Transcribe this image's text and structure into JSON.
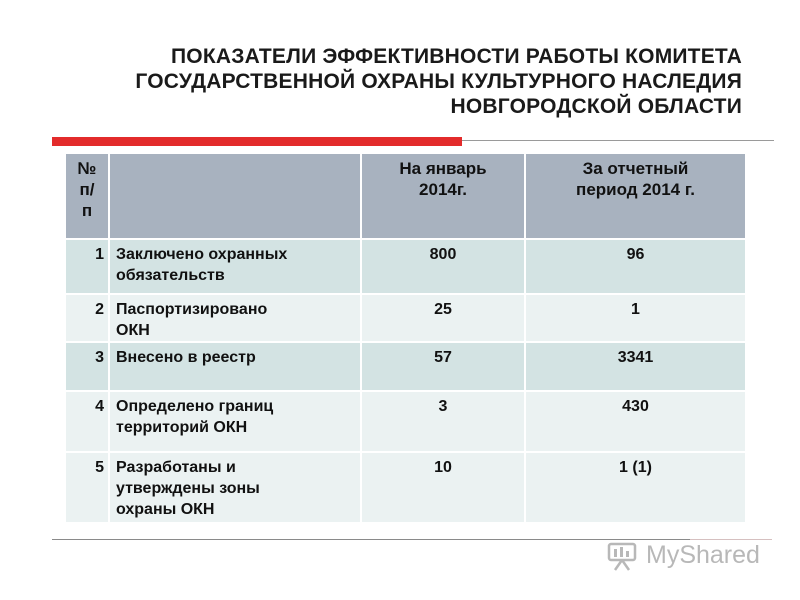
{
  "title": {
    "line1": "ПОКАЗАТЕЛИ  ЭФФЕКТИВНОСТИ РАБОТЫ КОМИТЕТА",
    "line2": "ГОСУДАРСТВЕННОЙ ОХРАНЫ КУЛЬТУРНОГО НАСЛЕДИЯ",
    "line3": "НОВГОРОДСКОЙ ОБЛАСТИ"
  },
  "table": {
    "headers": {
      "no_line1": "№",
      "no_line2": "п/",
      "no_line3": "п",
      "name": "",
      "jan_line1": "На январь",
      "jan_line2": "2014г.",
      "period_line1": "За отчетный",
      "period_line2": "период 2014 г."
    },
    "rows": [
      {
        "no": "1",
        "name_line1": "Заключено охранных",
        "name_line2": "обязательств",
        "name_line3": "",
        "jan": "800",
        "period": "96"
      },
      {
        "no": "2",
        "name_line1": "Паспортизировано",
        "name_line2": "ОКН",
        "name_line3": "",
        "jan": "25",
        "period": "1"
      },
      {
        "no": "3",
        "name_line1": "Внесено в реестр",
        "name_line2": "",
        "name_line3": "",
        "jan": "57",
        "period": "3341"
      },
      {
        "no": "4",
        "name_line1": "Определено границ",
        "name_line2": "территорий ОКН",
        "name_line3": "",
        "jan": "3",
        "period": "430"
      },
      {
        "no": "5",
        "name_line1": "Разработаны и",
        "name_line2": "утверждены зоны",
        "name_line3": "охраны ОКН",
        "jan": "10",
        "period": "1 (1)"
      }
    ]
  },
  "colors": {
    "header_bg": "#a8b2bf",
    "row_dark": "#d3e3e3",
    "row_light": "#ebf2f2",
    "accent_red": "#e32b2b"
  },
  "watermark": {
    "icon": "myshared-logo-icon",
    "text": "MyShared"
  }
}
